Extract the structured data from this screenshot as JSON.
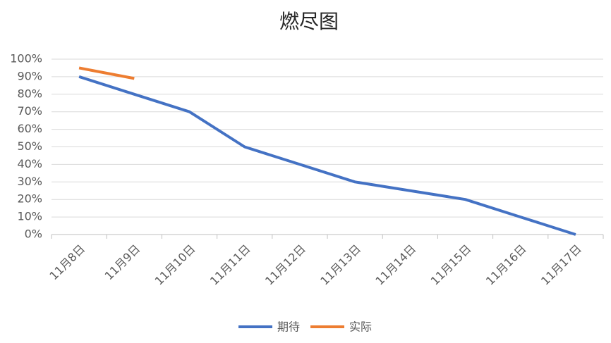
{
  "chart_data": {
    "type": "line",
    "title": "燃尽图",
    "categories": [
      "11月8日",
      "11月9日",
      "11月10日",
      "11月11日",
      "11月12日",
      "11月13日",
      "11月14日",
      "11月15日",
      "11月16日",
      "11月17日"
    ],
    "series": [
      {
        "name": "期待",
        "color": "#4472c4",
        "values": [
          90,
          80,
          70,
          50,
          40,
          30,
          25,
          20,
          10,
          0
        ]
      },
      {
        "name": "实际",
        "color": "#ed7d31",
        "values": [
          95,
          89,
          null,
          null,
          null,
          null,
          null,
          null,
          null,
          null
        ]
      }
    ],
    "ylim": [
      0,
      100
    ],
    "yticks": [
      {
        "value": 0,
        "label": "0%"
      },
      {
        "value": 10,
        "label": "10%"
      },
      {
        "value": 20,
        "label": "20%"
      },
      {
        "value": 30,
        "label": "30%"
      },
      {
        "value": 40,
        "label": "40%"
      },
      {
        "value": 50,
        "label": "50%"
      },
      {
        "value": 60,
        "label": "60%"
      },
      {
        "value": 70,
        "label": "70%"
      },
      {
        "value": 80,
        "label": "80%"
      },
      {
        "value": 90,
        "label": "90%"
      },
      {
        "value": 100,
        "label": "100%"
      }
    ],
    "grid": true,
    "legend": "bottom"
  }
}
